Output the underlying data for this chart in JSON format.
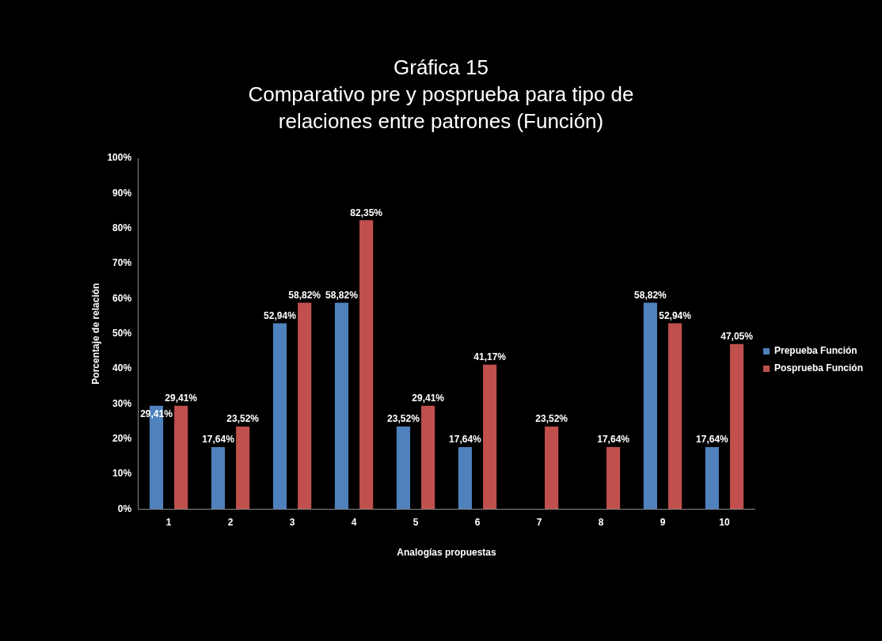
{
  "chart_data": {
    "type": "bar",
    "title": "Gráfica 15",
    "subtitle": "Comparativo pre y posprueba para tipo de relaciones entre patrones (Función)",
    "xlabel": "Analogías propuestas",
    "ylabel": "Porcentaje de relación",
    "categories": [
      "1",
      "2",
      "3",
      "4",
      "5",
      "6",
      "7",
      "8",
      "9",
      "10"
    ],
    "series": [
      {
        "name": "Prepueba Función",
        "color": "#4f81bd",
        "values": [
          29.41,
          17.64,
          52.94,
          58.82,
          23.52,
          17.64,
          null,
          null,
          58.82,
          17.64
        ],
        "value_labels": [
          "29,41%",
          "17,64%",
          "52,94%",
          "58,82%",
          "23,52%",
          "17,64%",
          null,
          null,
          "58,82%",
          "17,64%"
        ]
      },
      {
        "name": "Posprueba Función",
        "color": "#c0504d",
        "values": [
          29.41,
          23.52,
          58.82,
          82.35,
          29.41,
          41.17,
          23.52,
          17.64,
          52.94,
          47.05
        ],
        "value_labels": [
          "29,41%",
          "23,52%",
          "58,82%",
          "82,35%",
          "29,41%",
          "41,17%",
          "23,52%",
          "17,64%",
          "52,94%",
          "47,05%"
        ]
      }
    ],
    "ylim": [
      0,
      100
    ],
    "yticks": [
      {
        "value": 0,
        "label": "0%"
      },
      {
        "value": 10,
        "label": "10%"
      },
      {
        "value": 20,
        "label": "20%"
      },
      {
        "value": 30,
        "label": "30%"
      },
      {
        "value": 40,
        "label": "40%"
      },
      {
        "value": 50,
        "label": "50%"
      },
      {
        "value": 60,
        "label": "60%"
      },
      {
        "value": 70,
        "label": "70%"
      },
      {
        "value": 80,
        "label": "80%"
      },
      {
        "value": 90,
        "label": "90%"
      },
      {
        "value": 100,
        "label": "100%"
      }
    ],
    "grid": false,
    "legend": "right"
  }
}
